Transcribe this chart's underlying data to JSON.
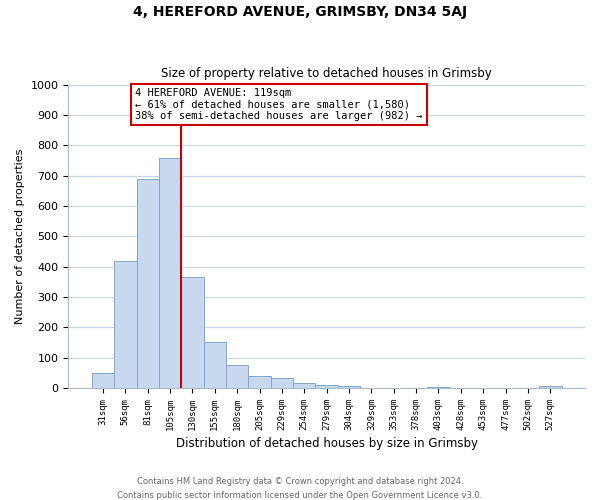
{
  "title": "4, HEREFORD AVENUE, GRIMSBY, DN34 5AJ",
  "subtitle": "Size of property relative to detached houses in Grimsby",
  "xlabel": "Distribution of detached houses by size in Grimsby",
  "ylabel": "Number of detached properties",
  "bar_labels": [
    "31sqm",
    "56sqm",
    "81sqm",
    "105sqm",
    "130sqm",
    "155sqm",
    "180sqm",
    "205sqm",
    "229sqm",
    "254sqm",
    "279sqm",
    "304sqm",
    "329sqm",
    "353sqm",
    "378sqm",
    "403sqm",
    "428sqm",
    "453sqm",
    "477sqm",
    "502sqm",
    "527sqm"
  ],
  "bar_values": [
    50,
    420,
    690,
    760,
    365,
    153,
    75,
    40,
    32,
    18,
    10,
    8,
    0,
    0,
    0,
    5,
    0,
    0,
    0,
    0,
    8
  ],
  "bar_color": "#c8d8ee",
  "bar_edge_color": "#7fa8cc",
  "vline_x_index": 3,
  "vline_color": "#cc0000",
  "ylim": [
    0,
    1000
  ],
  "yticks": [
    0,
    100,
    200,
    300,
    400,
    500,
    600,
    700,
    800,
    900,
    1000
  ],
  "annotation_title": "4 HEREFORD AVENUE: 119sqm",
  "annotation_line1": "← 61% of detached houses are smaller (1,580)",
  "annotation_line2": "38% of semi-detached houses are larger (982) →",
  "footer1": "Contains HM Land Registry data © Crown copyright and database right 2024.",
  "footer2": "Contains public sector information licensed under the Open Government Licence v3.0.",
  "grid_color": "#c8d4e8",
  "background_color": "#ffffff"
}
